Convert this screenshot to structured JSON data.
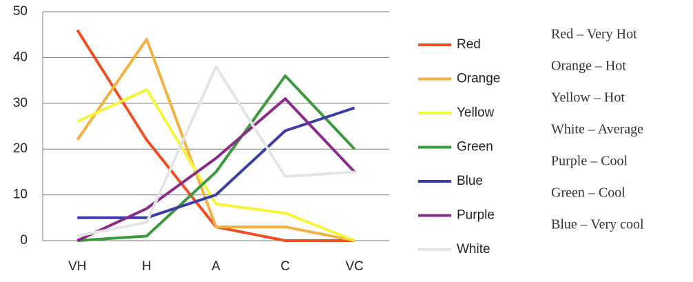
{
  "chart_data": {
    "type": "line",
    "categories": [
      "VH",
      "H",
      "A",
      "C",
      "VC"
    ],
    "series": [
      {
        "name": "Red",
        "color": "#f04e23",
        "values": [
          46,
          22,
          3,
          0,
          0
        ]
      },
      {
        "name": "Orange",
        "color": "#f4b13f",
        "values": [
          22,
          44,
          3,
          3,
          0
        ]
      },
      {
        "name": "Yellow",
        "color": "#f5f53a",
        "values": [
          26,
          33,
          8,
          6,
          0
        ]
      },
      {
        "name": "Green",
        "color": "#3b9a3b",
        "values": [
          0,
          1,
          15,
          36,
          20
        ]
      },
      {
        "name": "Blue",
        "color": "#3a3ca8",
        "values": [
          5,
          5,
          10,
          24,
          29
        ]
      },
      {
        "name": "Purple",
        "color": "#8c2a8c",
        "values": [
          0,
          7,
          18,
          31,
          15
        ]
      },
      {
        "name": "White",
        "color": "#e4e4e4",
        "values": [
          1,
          4,
          38,
          14,
          15
        ]
      }
    ],
    "ylim": [
      0,
      50
    ],
    "yticks": [
      0,
      10,
      20,
      30,
      40,
      50
    ],
    "grid": true,
    "legend": "right",
    "annotations": [
      "Red – Very Hot",
      "Orange – Hot",
      "Yellow – Hot",
      "White – Average",
      "Purple – Cool",
      "Green – Cool",
      "Blue – Very cool"
    ]
  }
}
